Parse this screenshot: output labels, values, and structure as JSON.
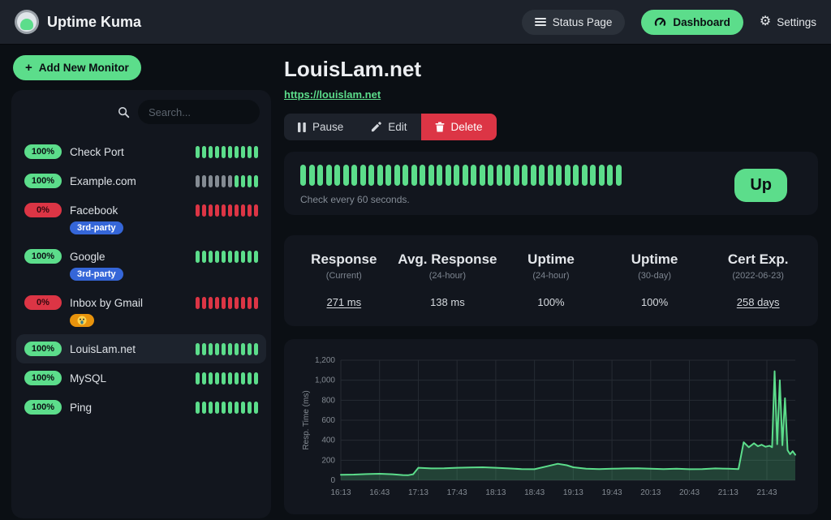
{
  "navbar": {
    "title": "Uptime Kuma",
    "buttons": {
      "status_page": "Status Page",
      "dashboard": "Dashboard",
      "settings": "Settings"
    }
  },
  "sidebar": {
    "add_monitor": "Add New Monitor",
    "search_placeholder": "Search...",
    "monitors": [
      {
        "name": "Check Port",
        "uptime": "100%",
        "status": "up",
        "selected": false,
        "beats": [
          "up",
          "up",
          "up",
          "up",
          "up",
          "up",
          "up",
          "up",
          "up",
          "up"
        ],
        "tags": []
      },
      {
        "name": "Example.com",
        "uptime": "100%",
        "status": "up",
        "selected": false,
        "beats": [
          "pending",
          "pending",
          "pending",
          "pending",
          "pending",
          "pending",
          "up",
          "up",
          "up",
          "up"
        ],
        "tags": []
      },
      {
        "name": "Facebook",
        "uptime": "0%",
        "status": "down",
        "selected": false,
        "beats": [
          "down",
          "down",
          "down",
          "down",
          "down",
          "down",
          "down",
          "down",
          "down",
          "down"
        ],
        "tags": [
          {
            "label": "3rd-party",
            "color": "#3566d8",
            "emoji": false
          }
        ]
      },
      {
        "name": "Google",
        "uptime": "100%",
        "status": "up",
        "selected": false,
        "beats": [
          "up",
          "up",
          "up",
          "up",
          "up",
          "up",
          "up",
          "up",
          "up",
          "up"
        ],
        "tags": [
          {
            "label": "3rd-party",
            "color": "#3566d8",
            "emoji": false
          }
        ]
      },
      {
        "name": "Inbox by Gmail",
        "uptime": "0%",
        "status": "down",
        "selected": false,
        "beats": [
          "down",
          "down",
          "down",
          "down",
          "down",
          "down",
          "down",
          "down",
          "down",
          "down"
        ],
        "tags": [
          {
            "label": "😱",
            "color": "#e8930c",
            "emoji": true
          }
        ]
      },
      {
        "name": "LouisLam.net",
        "uptime": "100%",
        "status": "up",
        "selected": true,
        "beats": [
          "up",
          "up",
          "up",
          "up",
          "up",
          "up",
          "up",
          "up",
          "up",
          "up"
        ],
        "tags": []
      },
      {
        "name": "MySQL",
        "uptime": "100%",
        "status": "up",
        "selected": false,
        "beats": [
          "up",
          "up",
          "up",
          "up",
          "up",
          "up",
          "up",
          "up",
          "up",
          "up"
        ],
        "tags": []
      },
      {
        "name": "Ping",
        "uptime": "100%",
        "status": "up",
        "selected": false,
        "beats": [
          "up",
          "up",
          "up",
          "up",
          "up",
          "up",
          "up",
          "up",
          "up",
          "up"
        ],
        "tags": []
      }
    ]
  },
  "monitor": {
    "title": "LouisLam.net",
    "url": "https://louislam.net",
    "actions": {
      "pause": "Pause",
      "edit": "Edit",
      "delete": "Delete"
    },
    "status_badge": "Up",
    "interval_text": "Check every 60 seconds.",
    "beats_count": 38,
    "stats": [
      {
        "title": "Response",
        "subtitle": "(Current)",
        "value": "271 ms",
        "underlined": true
      },
      {
        "title": "Avg. Response",
        "subtitle": "(24-hour)",
        "value": "138 ms",
        "underlined": false
      },
      {
        "title": "Uptime",
        "subtitle": "(24-hour)",
        "value": "100%",
        "underlined": false
      },
      {
        "title": "Uptime",
        "subtitle": "(30-day)",
        "value": "100%",
        "underlined": false
      },
      {
        "title": "Cert Exp.",
        "subtitle": "(2022-06-23)",
        "value": "258 days",
        "underlined": true
      }
    ]
  },
  "chart_data": {
    "type": "area",
    "title": "",
    "xlabel": "",
    "ylabel": "Resp. Time (ms)",
    "ylim": [
      0,
      1200
    ],
    "yticks": [
      0,
      200,
      400,
      600,
      800,
      1000,
      1200
    ],
    "xticks": [
      "16:13",
      "16:43",
      "17:13",
      "17:43",
      "18:13",
      "18:43",
      "19:13",
      "19:43",
      "20:13",
      "20:43",
      "21:13",
      "21:43"
    ],
    "grid": true,
    "legend_position": "none",
    "line_color": "#5cdd8b",
    "fill_color": "rgba(92,221,139,0.22)",
    "x": [
      "16:13",
      "16:23",
      "16:33",
      "16:43",
      "16:53",
      "17:01",
      "17:05",
      "17:09",
      "17:13",
      "17:23",
      "17:33",
      "17:43",
      "17:53",
      "18:03",
      "18:13",
      "18:23",
      "18:33",
      "18:43",
      "18:53",
      "19:01",
      "19:08",
      "19:13",
      "19:23",
      "19:33",
      "19:43",
      "19:53",
      "20:03",
      "20:13",
      "20:23",
      "20:33",
      "20:43",
      "20:53",
      "21:03",
      "21:13",
      "21:21",
      "21:25",
      "21:29",
      "21:33",
      "21:36",
      "21:39",
      "21:42",
      "21:45",
      "21:47",
      "21:49",
      "21:51",
      "21:53",
      "21:55",
      "21:57",
      "21:59",
      "22:01",
      "22:03",
      "22:05"
    ],
    "values": [
      55,
      57,
      62,
      65,
      60,
      52,
      50,
      60,
      125,
      118,
      120,
      125,
      128,
      130,
      125,
      118,
      112,
      110,
      140,
      165,
      150,
      130,
      115,
      112,
      115,
      118,
      120,
      115,
      112,
      115,
      110,
      112,
      118,
      115,
      112,
      380,
      330,
      370,
      340,
      355,
      335,
      345,
      330,
      1090,
      360,
      1000,
      350,
      820,
      300,
      260,
      290,
      255
    ]
  },
  "colors": {
    "primary": "#5cdd8b",
    "danger": "#dc3545",
    "pending": "#848b93",
    "tag_blue": "#3566d8",
    "tag_orange": "#e8930c"
  }
}
